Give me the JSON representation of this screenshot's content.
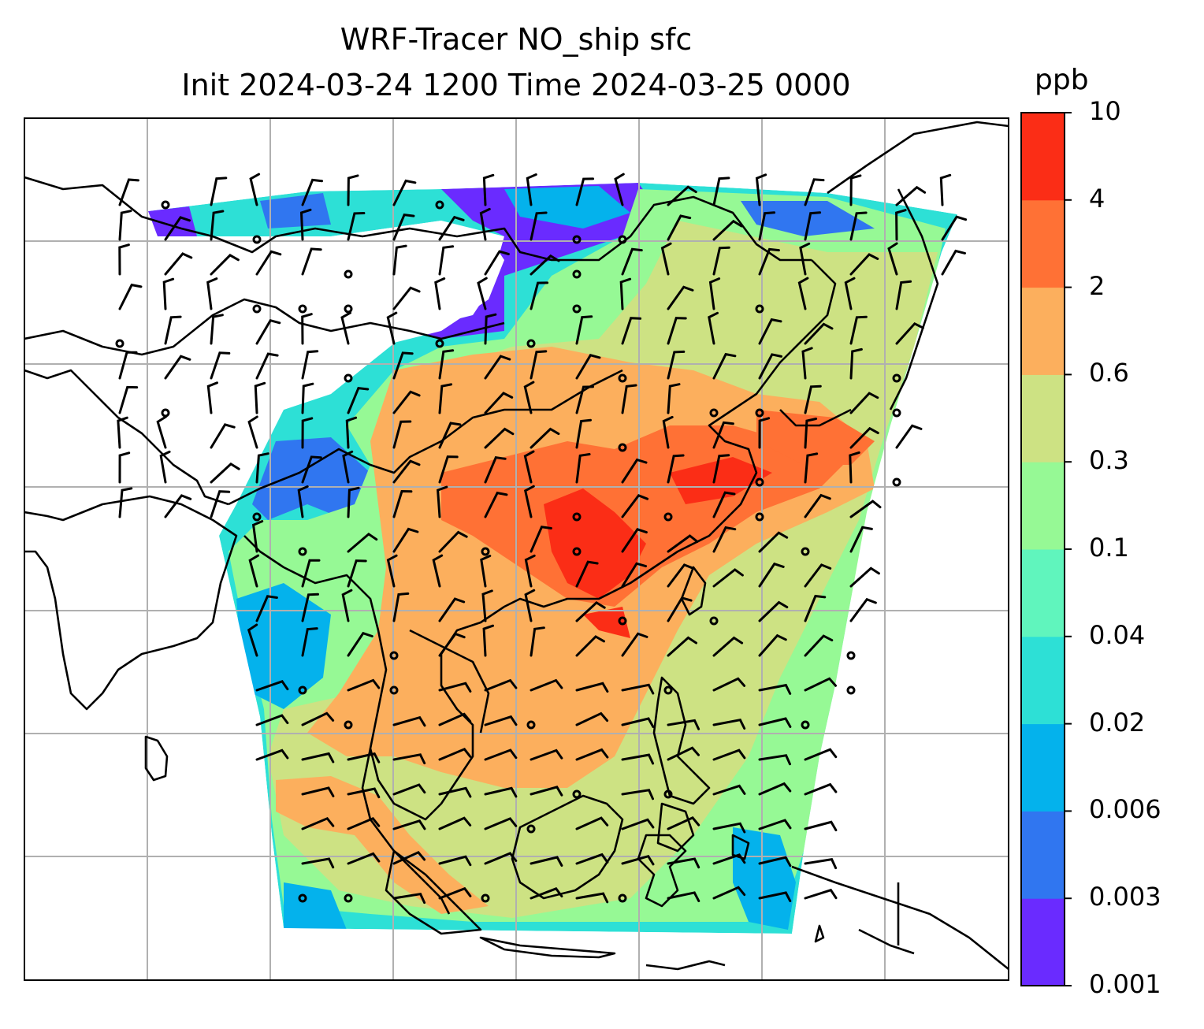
{
  "title": {
    "line1": "WRF-Tracer NO_ship sfc",
    "line2": "Init 2024-03-24 1200 Time 2024-03-25 0000"
  },
  "colorbar": {
    "units": "ppb",
    "levels": [
      "0.001",
      "0.003",
      "0.006",
      "0.02",
      "0.04",
      "0.1",
      "0.3",
      "0.6",
      "2",
      "4",
      "10"
    ],
    "colors": [
      "#6a2bff",
      "#3076f0",
      "#04b2ec",
      "#2de0d6",
      "#60f5bd",
      "#96f995",
      "#cde283",
      "#fcaf5d",
      "#ff7135",
      "#fb2d16"
    ]
  },
  "map": {
    "projection_bounds": "lat/lon grid, no tick labels",
    "no_data_color": "#ffffff",
    "coastline_color": "#000000",
    "gridline_color": "#b0b0b0",
    "wind_barb_color": "#000000",
    "layers": [
      "concentration-fill",
      "coastlines",
      "gridlines",
      "wind-barbs"
    ]
  }
}
